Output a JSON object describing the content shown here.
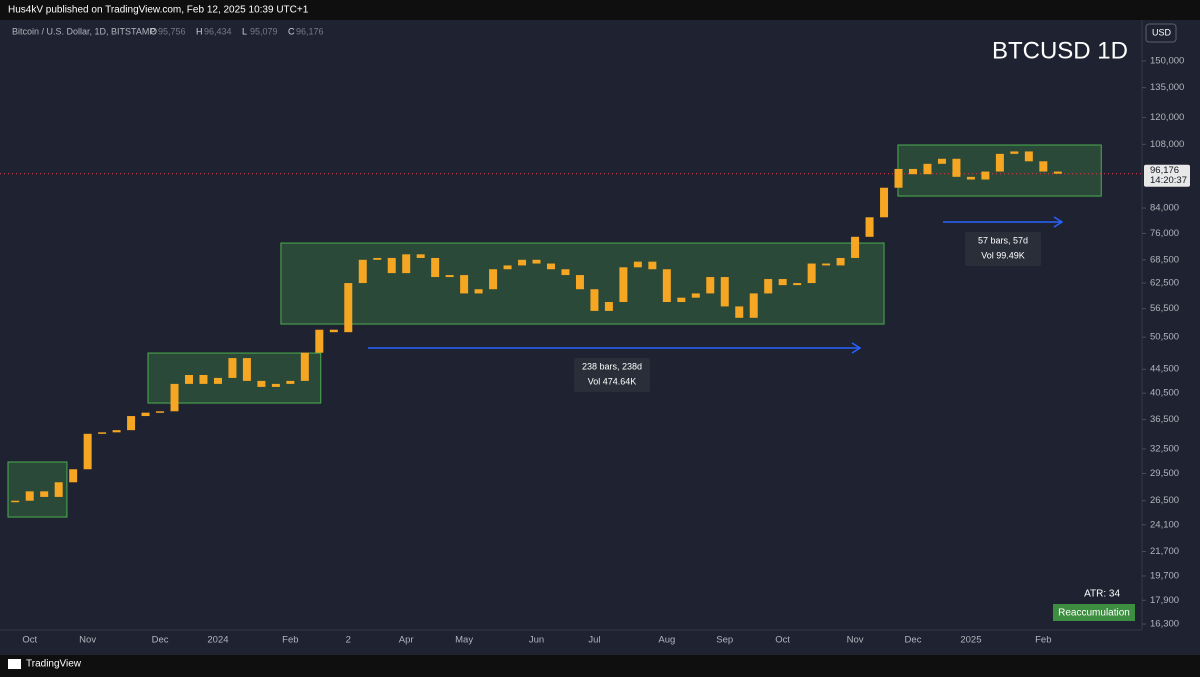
{
  "header": "Hus4kV published on TradingView.com, Feb 12, 2025 10:39 UTC+1",
  "footer": "TradingView",
  "chart_data": {
    "type": "candlestick",
    "title": "BTCUSD 1D",
    "symbol": "Bitcoin / U.S. Dollar, 1D, BITSTAMP",
    "ohlc_keys": [
      "O",
      "H",
      "L",
      "C"
    ],
    "ohlc_values": [
      "95,756",
      "96,434",
      "95,079",
      "96,176"
    ],
    "currency": "USD",
    "categories": [
      null,
      "Oct",
      null,
      null,
      null,
      "Nov",
      null,
      null,
      null,
      null,
      "Dec",
      null,
      null,
      null,
      "2024",
      null,
      null,
      null,
      null,
      "Feb",
      null,
      null,
      null,
      "2",
      null,
      null,
      null,
      "Apr",
      null,
      null,
      null,
      "May",
      null,
      null,
      null,
      null,
      "Jun",
      null,
      null,
      null,
      "Jul",
      null,
      null,
      null,
      null,
      "Aug",
      null,
      null,
      null,
      "Sep",
      null,
      null,
      null,
      "Oct",
      null,
      null,
      null,
      null,
      "Nov",
      null,
      null,
      null,
      "Dec",
      null,
      null,
      null,
      "2025",
      null,
      null,
      null,
      null,
      "Feb",
      null
    ],
    "series": [
      {
        "name": "BTCUSD",
        "color": "#f5a623",
        "values": [
          26500,
          27500,
          26900,
          28500,
          30000,
          34500,
          34700,
          35000,
          37000,
          37500,
          37700,
          42000,
          43500,
          42000,
          43000,
          46500,
          42500,
          41500,
          42000,
          42500,
          47500,
          52000,
          51500,
          62500,
          68500,
          69000,
          65000,
          70000,
          69000,
          64000,
          64500,
          60000,
          61000,
          66000,
          67000,
          68500,
          67500,
          66000,
          64500,
          61000,
          56000,
          58000,
          66500,
          68000,
          66000,
          58000,
          59000,
          60000,
          64000,
          57000,
          54500,
          60000,
          63500,
          62000,
          62500,
          67500,
          67000,
          69000,
          75000,
          81000,
          91000,
          98000,
          96000,
          100000,
          102000,
          95000,
          94000,
          97000,
          104000,
          105000,
          101000,
          97000,
          96176
        ]
      }
    ],
    "log_scale": true,
    "ylim": [
      15920,
      174900
    ],
    "yticks": [
      {
        "value": 16300,
        "label": "16,300"
      },
      {
        "value": 17900,
        "label": "17,900"
      },
      {
        "value": 19700,
        "label": "19,700"
      },
      {
        "value": 21700,
        "label": "21,700"
      },
      {
        "value": 24100,
        "label": "24,100"
      },
      {
        "value": 26500,
        "label": "26,500"
      },
      {
        "value": 29500,
        "label": "29,500"
      },
      {
        "value": 32500,
        "label": "32,500"
      },
      {
        "value": 36500,
        "label": "36,500"
      },
      {
        "value": 40500,
        "label": "40,500"
      },
      {
        "value": 44500,
        "label": "44,500"
      },
      {
        "value": 50500,
        "label": "50,500"
      },
      {
        "value": 56500,
        "label": "56,500"
      },
      {
        "value": 62500,
        "label": "62,500"
      },
      {
        "value": 68500,
        "label": "68,500"
      },
      {
        "value": 76000,
        "label": "76,000"
      },
      {
        "value": 84000,
        "label": "84,000"
      },
      {
        "value": 108000,
        "label": "108,000"
      },
      {
        "value": 120000,
        "label": "120,000"
      },
      {
        "value": 135000,
        "label": "135,000"
      },
      {
        "value": 150000,
        "label": "150,000"
      }
    ],
    "last_price": {
      "value": 96176,
      "label": "96,176",
      "countdown": "14:20:37"
    },
    "zones": [
      {
        "x": [
          0,
          4.07
        ],
        "y": [
          24850,
          30870
        ]
      },
      {
        "x": [
          9.67,
          21.6
        ],
        "y": [
          38950,
          47430
        ]
      },
      {
        "x": [
          18.85,
          60.5
        ],
        "y": [
          53180,
          73180
        ]
      },
      {
        "x": [
          61.46,
          75.5
        ],
        "y": [
          88070,
          107700
        ]
      }
    ],
    "measures": [
      {
        "bars": "238 bars, 238d",
        "vol": "Vol 474.64K"
      },
      {
        "bars": "57 bars, 57d",
        "vol": "Vol 99.49K"
      }
    ],
    "atr": "ATR: 34",
    "tag": "Reaccumulation"
  }
}
